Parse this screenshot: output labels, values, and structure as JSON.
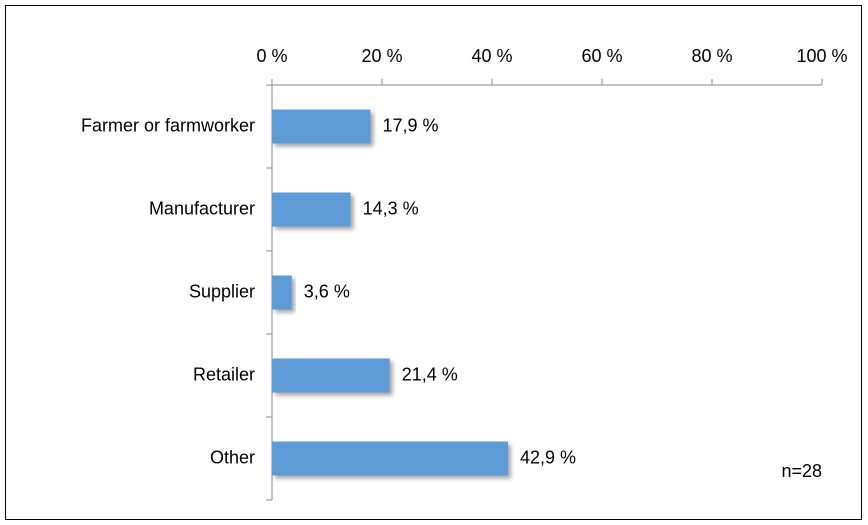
{
  "chart_data": {
    "type": "bar",
    "orientation": "horizontal",
    "categories": [
      "Farmer or farmworker",
      "Manufacturer",
      "Supplier",
      "Retailer",
      "Other"
    ],
    "values": [
      17.9,
      14.3,
      3.6,
      21.4,
      42.9
    ],
    "value_labels": [
      "17,9 %",
      "14,3 %",
      "3,6 %",
      "21,4 %",
      "42,9 %"
    ],
    "color": "#5b9bd5",
    "xlim": [
      0,
      100
    ],
    "xticks": [
      {
        "value": 0,
        "label": "0 %"
      },
      {
        "value": 20,
        "label": "20 %"
      },
      {
        "value": 40,
        "label": "40 %"
      },
      {
        "value": 60,
        "label": "60 %"
      },
      {
        "value": 80,
        "label": "80 %"
      },
      {
        "value": 100,
        "label": "100 %"
      }
    ],
    "annotation": "n=28"
  }
}
